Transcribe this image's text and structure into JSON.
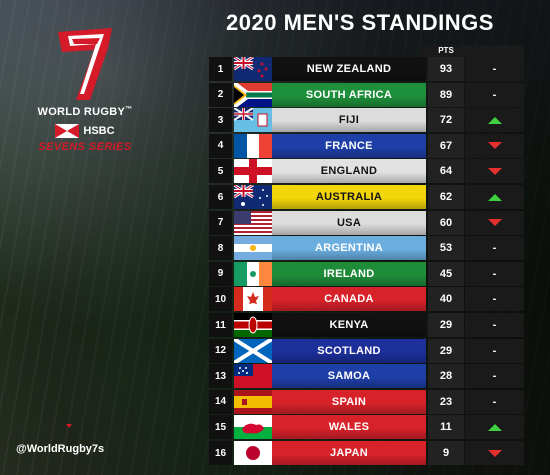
{
  "title": "2020 MEN'S STANDINGS",
  "pts_label": "PTS",
  "logo": {
    "line1": "WORLD RUGBY",
    "tm": "™",
    "sponsor": "HSBC",
    "series": "SEVENS SERIES"
  },
  "handle": "@WorldRugby7s",
  "colors": {
    "accent_red": "#d51a2a",
    "up": "#3fcf3f",
    "down": "#e53030"
  },
  "rows": [
    {
      "pos": "1",
      "team": "NEW ZEALAND",
      "pts": "93",
      "change": "-",
      "flag": "new-zealand-flag",
      "bg": "#111111"
    },
    {
      "pos": "2",
      "team": "SOUTH AFRICA",
      "pts": "89",
      "change": "-",
      "flag": "south-africa-flag",
      "bg": "#1e8f3a"
    },
    {
      "pos": "3",
      "team": "FIJI",
      "pts": "72",
      "change": "up",
      "flag": "fiji-flag",
      "bg": "#dcdcdc"
    },
    {
      "pos": "4",
      "team": "FRANCE",
      "pts": "67",
      "change": "down",
      "flag": "france-flag",
      "bg": "#1f3fa8"
    },
    {
      "pos": "5",
      "team": "ENGLAND",
      "pts": "64",
      "change": "down",
      "flag": "england-flag",
      "bg": "#e2e2e2"
    },
    {
      "pos": "6",
      "team": "AUSTRALIA",
      "pts": "62",
      "change": "up",
      "flag": "australia-flag",
      "bg": "#f2d60a"
    },
    {
      "pos": "7",
      "team": "USA",
      "pts": "60",
      "change": "down",
      "flag": "usa-flag",
      "bg": "#dcdcdc"
    },
    {
      "pos": "8",
      "team": "ARGENTINA",
      "pts": "53",
      "change": "-",
      "flag": "argentina-flag",
      "bg": "#6aaee0"
    },
    {
      "pos": "9",
      "team": "IRELAND",
      "pts": "45",
      "change": "-",
      "flag": "ireland-flag",
      "bg": "#1f8c3a"
    },
    {
      "pos": "10",
      "team": "CANADA",
      "pts": "40",
      "change": "-",
      "flag": "canada-flag",
      "bg": "#d8222a"
    },
    {
      "pos": "11",
      "team": "KENYA",
      "pts": "29",
      "change": "-",
      "flag": "kenya-flag",
      "bg": "#111111"
    },
    {
      "pos": "12",
      "team": "SCOTLAND",
      "pts": "29",
      "change": "-",
      "flag": "scotland-flag",
      "bg": "#1d2f9a"
    },
    {
      "pos": "13",
      "team": "SAMOA",
      "pts": "28",
      "change": "-",
      "flag": "samoa-flag",
      "bg": "#1f3fa8"
    },
    {
      "pos": "14",
      "team": "SPAIN",
      "pts": "23",
      "change": "-",
      "flag": "spain-flag",
      "bg": "#d8222a"
    },
    {
      "pos": "15",
      "team": "WALES",
      "pts": "11",
      "change": "up",
      "flag": "wales-flag",
      "bg": "#d8222a"
    },
    {
      "pos": "16",
      "team": "JAPAN",
      "pts": "9",
      "change": "down",
      "flag": "japan-flag",
      "bg": "#d8222a"
    }
  ]
}
